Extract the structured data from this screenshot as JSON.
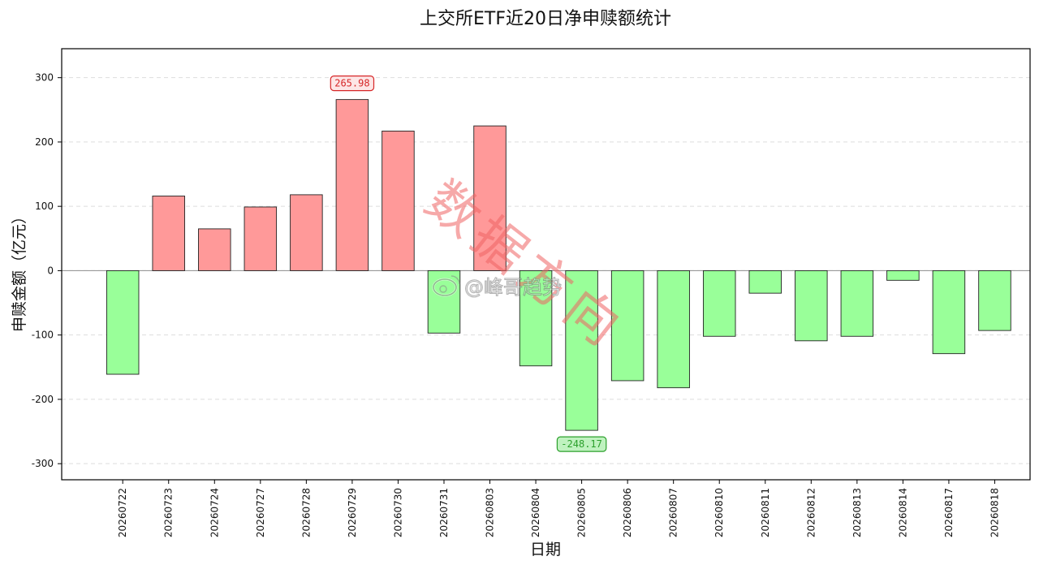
{
  "chart_data": {
    "type": "bar",
    "title": "上交所ETF近20日净申赎额统计",
    "xlabel": "日期",
    "ylabel": "申赎金额（亿元）",
    "categories": [
      "20260722",
      "20260723",
      "20260724",
      "20260727",
      "20260728",
      "20260729",
      "20260730",
      "20260731",
      "20260803",
      "20260804",
      "20260805",
      "20260806",
      "20260807",
      "20260810",
      "20260811",
      "20260812",
      "20260813",
      "20260814",
      "20260817",
      "20260818"
    ],
    "values": [
      -161,
      116,
      65,
      99,
      118,
      265.98,
      217,
      -97,
      225,
      -148,
      -248.17,
      -171,
      -182,
      -102,
      -35,
      -109,
      -102,
      -15,
      -129,
      -93
    ],
    "ylim": [
      -325,
      345
    ],
    "yticks": [
      300,
      200,
      100,
      0,
      -100,
      -200,
      -300
    ],
    "grid": "horizontal-dashed",
    "positive_color": "#ff9999",
    "negative_color": "#99ff99",
    "annotations": [
      {
        "category": "20260729",
        "label": "265.98",
        "color": "#d62728",
        "fill": "#fde6e6"
      },
      {
        "category": "20260805",
        "label": "-248.17",
        "color": "#2ca02c",
        "fill": "#bff2bf"
      }
    ]
  },
  "watermark": {
    "diagonal": "数据方向",
    "handle": "@峰哥趋势"
  }
}
